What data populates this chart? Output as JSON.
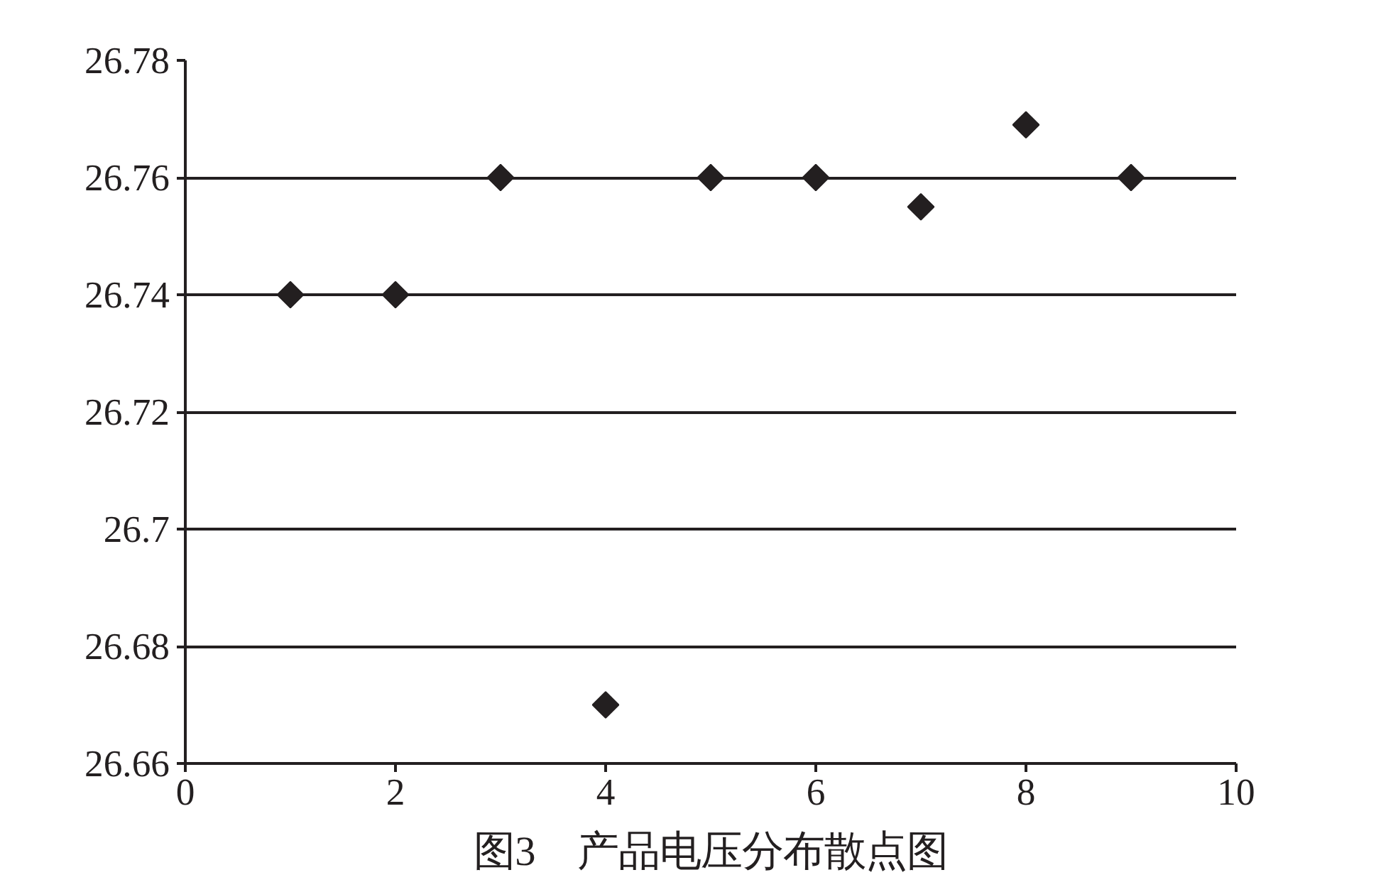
{
  "chart_data": {
    "type": "scatter",
    "title": "图3　产品电压分布散点图",
    "x": [
      1,
      2,
      3,
      4,
      5,
      6,
      7,
      8,
      9
    ],
    "series": [
      {
        "color": "#231f20",
        "values": [
          26.74,
          26.74,
          26.76,
          26.67,
          26.76,
          26.76,
          26.755,
          26.769,
          26.76
        ]
      }
    ],
    "xlim": [
      0,
      10
    ],
    "xticks": [
      0,
      2,
      4,
      6,
      8,
      10
    ],
    "ylim": [
      26.66,
      26.78
    ],
    "yticks": [
      26.66,
      26.68,
      26.7,
      26.72,
      26.74,
      26.76,
      26.78
    ],
    "grid": "y",
    "marker": "diamond"
  }
}
